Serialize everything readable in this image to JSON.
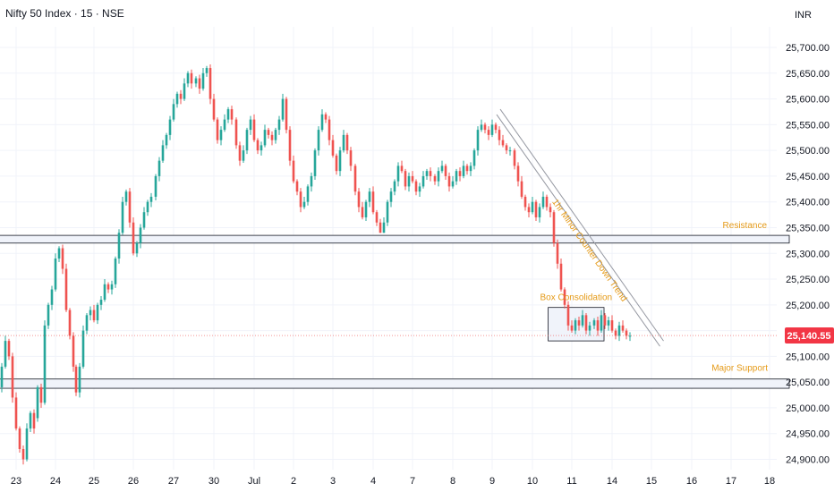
{
  "header": {
    "symbol": "Nifty 50 Index · 15 · NSE",
    "currency": "INR"
  },
  "colors": {
    "up": "#26a69a",
    "down": "#ef5350",
    "annotation": "#e59a17",
    "last_price_bg": "#f23645",
    "zone_fill": "#f0f3fa",
    "zone_stroke": "#131722",
    "trendline": "#9598a1",
    "grid": "#f0f3fa"
  },
  "chart_data": {
    "type": "candlestick",
    "ylim": [
      24880,
      25740
    ],
    "yticks": [
      24900,
      24950,
      25000,
      25050,
      25100,
      25150,
      25200,
      25250,
      25300,
      25350,
      25400,
      25450,
      25500,
      25550,
      25600,
      25650,
      25700
    ],
    "ytick_labels": [
      "24,900.00",
      "24,950.00",
      "25,000.00",
      "25,050.00",
      "25,100.00",
      "25,150.00",
      "25,200.00",
      "25,250.00",
      "25,300.00",
      "25,350.00",
      "25,400.00",
      "25,450.00",
      "25,500.00",
      "25,550.00",
      "25,600.00",
      "25,650.00",
      "25,700.00"
    ],
    "x_labels": [
      "23",
      "24",
      "25",
      "26",
      "27",
      "30",
      "Jul",
      "2",
      "3",
      "4",
      "7",
      "8",
      "9",
      "10",
      "11",
      "14",
      "15",
      "16",
      "17",
      "18"
    ],
    "sessions": [
      {
        "label": "23",
        "open": 25060,
        "high": 25140,
        "low": 24880,
        "close": 24960,
        "path": [
          25060,
          25040,
          25080,
          25130,
          25100,
          25020,
          24960,
          24920,
          24900,
          24960,
          24990,
          24960
        ]
      },
      {
        "label": "24",
        "open": 24980,
        "high": 25320,
        "low": 24960,
        "close": 25080,
        "path": [
          24980,
          25040,
          25010,
          25160,
          25200,
          25230,
          25290,
          25310,
          25270,
          25190,
          25140,
          25080
        ]
      },
      {
        "label": "25",
        "open": 25080,
        "high": 25260,
        "low": 25000,
        "close": 25240,
        "path": [
          25080,
          25030,
          25080,
          25150,
          25180,
          25190,
          25170,
          25200,
          25210,
          25240,
          25230,
          25240
        ]
      },
      {
        "label": "26",
        "open": 25240,
        "high": 25440,
        "low": 25220,
        "close": 25410,
        "path": [
          25240,
          25290,
          25340,
          25400,
          25420,
          25360,
          25300,
          25320,
          25350,
          25380,
          25400,
          25410
        ]
      },
      {
        "label": "27",
        "open": 25410,
        "high": 25660,
        "low": 25400,
        "close": 25630,
        "path": [
          25410,
          25450,
          25480,
          25510,
          25530,
          25560,
          25590,
          25610,
          25600,
          25630,
          25650,
          25630
        ]
      },
      {
        "label": "30",
        "open": 25630,
        "high": 25670,
        "low": 25480,
        "close": 25560,
        "path": [
          25630,
          25640,
          25620,
          25650,
          25660,
          25600,
          25560,
          25520,
          25540,
          25560,
          25580,
          25560
        ]
      },
      {
        "label": "Jul",
        "open": 25560,
        "high": 25580,
        "low": 25470,
        "close": 25520,
        "path": [
          25560,
          25510,
          25480,
          25500,
          25540,
          25560,
          25520,
          25500,
          25510,
          25540,
          25530,
          25520
        ]
      },
      {
        "label": "2",
        "open": 25520,
        "high": 25610,
        "low": 25380,
        "close": 25450,
        "path": [
          25520,
          25540,
          25560,
          25600,
          25540,
          25480,
          25440,
          25420,
          25390,
          25400,
          25430,
          25450
        ]
      },
      {
        "label": "3",
        "open": 25450,
        "high": 25590,
        "low": 25380,
        "close": 25470,
        "path": [
          25450,
          25500,
          25540,
          25570,
          25560,
          25520,
          25490,
          25460,
          25500,
          25530,
          25500,
          25470
        ]
      },
      {
        "label": "4",
        "open": 25470,
        "high": 25480,
        "low": 25340,
        "close": 25420,
        "path": [
          25470,
          25420,
          25390,
          25370,
          25400,
          25420,
          25380,
          25360,
          25340,
          25360,
          25400,
          25420
        ]
      },
      {
        "label": "7",
        "open": 25420,
        "high": 25480,
        "low": 25400,
        "close": 25450,
        "path": [
          25420,
          25440,
          25470,
          25460,
          25430,
          25450,
          25440,
          25420,
          25430,
          25450,
          25460,
          25450
        ]
      },
      {
        "label": "8",
        "open": 25450,
        "high": 25480,
        "low": 25420,
        "close": 25470,
        "path": [
          25450,
          25440,
          25460,
          25470,
          25450,
          25430,
          25440,
          25460,
          25450,
          25470,
          25460,
          25470
        ]
      },
      {
        "label": "9",
        "open": 25470,
        "high": 25560,
        "low": 25440,
        "close": 25500,
        "path": [
          25470,
          25500,
          25540,
          25550,
          25540,
          25530,
          25550,
          25540,
          25520,
          25510,
          25500,
          25500
        ]
      },
      {
        "label": "10",
        "open": 25500,
        "high": 25520,
        "low": 25350,
        "close": 25380,
        "path": [
          25500,
          25470,
          25440,
          25410,
          25390,
          25380,
          25400,
          25370,
          25390,
          25410,
          25390,
          25380
        ]
      },
      {
        "label": "11",
        "open": 25380,
        "high": 25390,
        "low": 25130,
        "close": 25160,
        "path": [
          25380,
          25320,
          25280,
          25230,
          25200,
          25160,
          25150,
          25170,
          25160,
          25180,
          25150,
          25160
        ]
      },
      {
        "label": "14",
        "open": 25160,
        "high": 25190,
        "low": 25130,
        "close": 25140,
        "path": [
          25160,
          25170,
          25150,
          25180,
          25160,
          25170,
          25150,
          25140,
          25160,
          25150,
          25140,
          25140
        ]
      }
    ],
    "last_price": 25140.55,
    "last_price_label": "25,140.55",
    "zones": [
      {
        "name": "Resistance",
        "from_session": -0.5,
        "to_session": 19.5,
        "y_low": 25320,
        "y_high": 25335
      },
      {
        "name": "Major Support",
        "from_session": -0.5,
        "to_session": 19.5,
        "y_low": 25038,
        "y_high": 25056
      },
      {
        "name": "Box Consolidation",
        "from_session": 13.4,
        "to_session": 14.8,
        "y_low": 25130,
        "y_high": 25195
      }
    ],
    "trendline": {
      "label": "1hr Minor Counter Down Trend",
      "x1": 12.2,
      "y1": 25580,
      "x2": 16.3,
      "y2": 25130
    },
    "annotations": {
      "resistance": "Resistance",
      "major_support": "Major Support",
      "box_consolidation": "Box Consolidation",
      "trend": "1hr Minor Counter Down Trend"
    }
  }
}
